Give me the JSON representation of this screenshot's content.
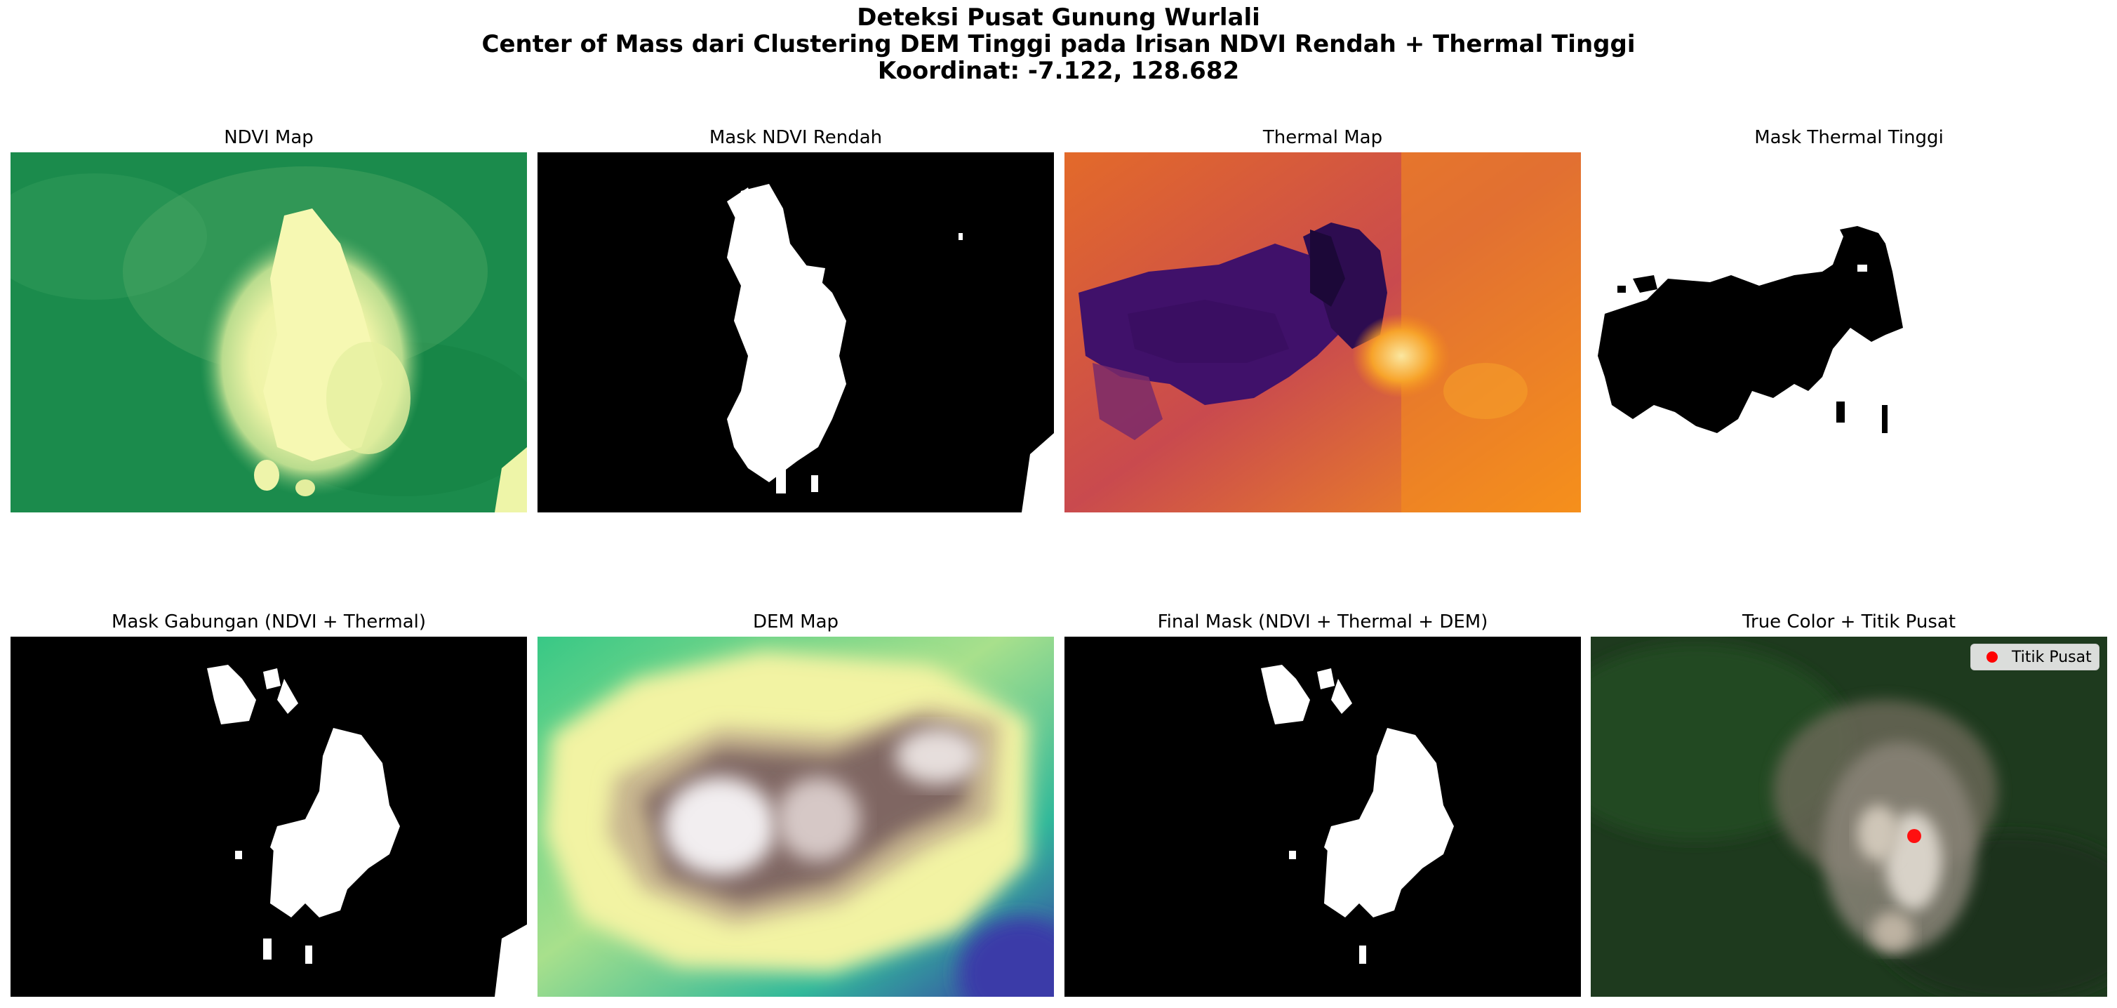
{
  "figure": {
    "title_lines": [
      "Deteksi Pusat Gunung Wurlali",
      "Center of Mass dari Clustering DEM Tinggi pada Irisan NDVI Rendah + Thermal Tinggi",
      "Koordinat: -7.122, 128.682"
    ],
    "panels": [
      {
        "id": "ndvi-map",
        "title": "NDVI Map"
      },
      {
        "id": "mask-ndvi-rendah",
        "title": "Mask NDVI Rendah"
      },
      {
        "id": "thermal-map",
        "title": "Thermal Map"
      },
      {
        "id": "mask-thermal-tinggi",
        "title": "Mask Thermal Tinggi"
      },
      {
        "id": "mask-gabungan",
        "title": "Mask Gabungan (NDVI + Thermal)"
      },
      {
        "id": "dem-map",
        "title": "DEM Map"
      },
      {
        "id": "final-mask",
        "title": "Final Mask (NDVI + Thermal + DEM)"
      },
      {
        "id": "true-color",
        "title": "True Color + Titik Pusat"
      }
    ],
    "legend": {
      "label": "Titik Pusat",
      "marker_color": "#ff0000"
    }
  },
  "colors": {
    "ndvi_high": "#1a8a4a",
    "ndvi_low": "#f6f8b0",
    "mask_fg": "#ffffff",
    "mask_bg": "#000000",
    "thermal_hot": "#f58a1a",
    "thermal_cold": "#2a0b4e",
    "dem_low": "#3a3aa8",
    "dem_mid": "#f0f0a0",
    "dem_high": "#ffffff",
    "center_point": "#ff0000"
  }
}
